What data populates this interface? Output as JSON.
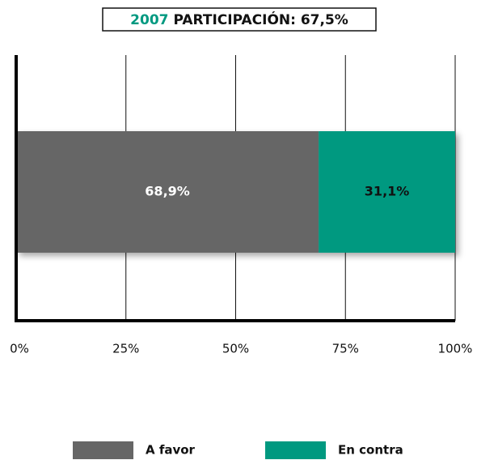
{
  "chart_data": {
    "type": "stacked-bar-horizontal",
    "title_year": "2007",
    "title": "PARTICIPACIÓN: 67,5%",
    "categories": [
      null
    ],
    "series": [
      {
        "name": "A favor",
        "color": "#666666",
        "label_color": "#ffffff",
        "values": [
          68.9
        ],
        "value_labels": [
          "68,9%"
        ]
      },
      {
        "name": "En contra",
        "color": "#009980",
        "label_color": "#111111",
        "values": [
          31.1
        ],
        "value_labels": [
          "31,1%"
        ]
      }
    ],
    "xlim": [
      0,
      100
    ],
    "xticks": [
      {
        "value": 0,
        "label": "0%"
      },
      {
        "value": 25,
        "label": "25%"
      },
      {
        "value": 50,
        "label": "50%"
      },
      {
        "value": 75,
        "label": "75%"
      },
      {
        "value": 100,
        "label": "100%"
      }
    ],
    "grid": true,
    "legend": "bottom"
  }
}
